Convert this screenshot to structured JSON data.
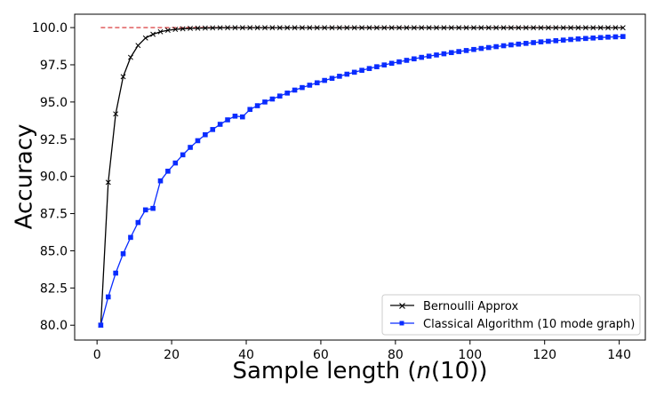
{
  "chart_data": {
    "type": "line",
    "xlabel_prefix": "Sample length (",
    "xlabel_math": "n",
    "xlabel_suffix": "(10))",
    "ylabel": "Accuracy",
    "xlim": [
      -6,
      147
    ],
    "ylim": [
      79.0,
      100.9
    ],
    "xticks": [
      0,
      20,
      40,
      60,
      80,
      100,
      120,
      140
    ],
    "yticks": [
      80.0,
      82.5,
      85.0,
      87.5,
      90.0,
      92.5,
      95.0,
      97.5,
      100.0
    ],
    "ytick_labels": [
      "80.0",
      "82.5",
      "85.0",
      "87.5",
      "90.0",
      "92.5",
      "95.0",
      "97.5",
      "100.0"
    ],
    "grid": false,
    "legend_position": "lower-right",
    "reference_line": {
      "y": 100.0,
      "x_start": 1,
      "x_end": 141,
      "color": "#d62728",
      "style": "dashed"
    },
    "x": [
      1,
      3,
      5,
      7,
      9,
      11,
      13,
      15,
      17,
      19,
      21,
      23,
      25,
      27,
      29,
      31,
      33,
      35,
      37,
      39,
      41,
      43,
      45,
      47,
      49,
      51,
      53,
      55,
      57,
      59,
      61,
      63,
      65,
      67,
      69,
      71,
      73,
      75,
      77,
      79,
      81,
      83,
      85,
      87,
      89,
      91,
      93,
      95,
      97,
      99,
      101,
      103,
      105,
      107,
      109,
      111,
      113,
      115,
      117,
      119,
      121,
      123,
      125,
      127,
      129,
      131,
      133,
      135,
      137,
      139,
      141
    ],
    "series": [
      {
        "name": "Bernoulli Approx",
        "color": "#000000",
        "marker": "x",
        "values": [
          80.0,
          89.6,
          94.2,
          96.7,
          98.0,
          98.8,
          99.3,
          99.55,
          99.72,
          99.82,
          99.88,
          99.92,
          99.95,
          99.96,
          99.97,
          99.98,
          99.985,
          99.99,
          99.99,
          99.99,
          99.99,
          99.99,
          99.99,
          99.99,
          99.99,
          99.99,
          99.99,
          99.99,
          99.99,
          99.99,
          99.99,
          99.99,
          99.99,
          99.99,
          99.99,
          99.99,
          99.99,
          99.99,
          99.99,
          99.99,
          99.99,
          99.99,
          99.99,
          99.99,
          99.99,
          99.99,
          99.99,
          99.99,
          99.99,
          99.99,
          99.99,
          99.99,
          99.99,
          99.99,
          99.99,
          99.99,
          99.99,
          99.99,
          99.99,
          99.99,
          99.99,
          99.99,
          99.99,
          99.99,
          99.99,
          99.99,
          99.99,
          99.99,
          99.99,
          99.99,
          99.99
        ]
      },
      {
        "name": "Classical Algorithm (10 mode graph)",
        "color": "#0a2cff",
        "marker": "square",
        "values": [
          80.0,
          81.9,
          83.5,
          84.8,
          85.9,
          86.9,
          87.75,
          87.85,
          89.7,
          90.35,
          90.9,
          91.45,
          91.95,
          92.4,
          92.8,
          93.15,
          93.5,
          93.8,
          94.05,
          94.0,
          94.5,
          94.75,
          95.0,
          95.2,
          95.4,
          95.6,
          95.8,
          95.97,
          96.13,
          96.29,
          96.45,
          96.59,
          96.73,
          96.87,
          97.0,
          97.13,
          97.25,
          97.37,
          97.49,
          97.6,
          97.7,
          97.8,
          97.9,
          98.0,
          98.08,
          98.16,
          98.24,
          98.32,
          98.39,
          98.46,
          98.53,
          98.6,
          98.66,
          98.72,
          98.78,
          98.84,
          98.89,
          98.94,
          98.99,
          99.04,
          99.08,
          99.12,
          99.16,
          99.2,
          99.24,
          99.27,
          99.3,
          99.33,
          99.36,
          99.38,
          99.4
        ]
      }
    ]
  }
}
